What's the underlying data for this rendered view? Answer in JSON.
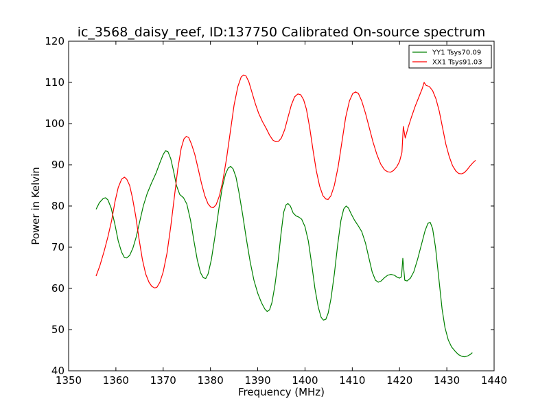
{
  "chart_data": {
    "type": "line",
    "title": "ic_3568_daisy_reef, ID:137750 Calibrated On-source spectrum",
    "xlabel": "Frequency (MHz)",
    "ylabel": "Power in Kelvin",
    "xlim": [
      1350,
      1440
    ],
    "ylim": [
      40,
      120
    ],
    "x_ticks": [
      1350,
      1360,
      1370,
      1380,
      1390,
      1400,
      1410,
      1420,
      1430,
      1440
    ],
    "y_ticks": [
      40,
      50,
      60,
      70,
      80,
      90,
      100,
      110,
      120
    ],
    "grid": false,
    "legend_position": "top-right",
    "series": [
      {
        "name": "YY1 Tsys70.09",
        "color": "#008000",
        "points": [
          [
            1355.8,
            79.2
          ],
          [
            1356.5,
            80.8
          ],
          [
            1357.3,
            81.8
          ],
          [
            1357.8,
            82.0
          ],
          [
            1358.3,
            81.5
          ],
          [
            1359.0,
            79.5
          ],
          [
            1359.8,
            75.5
          ],
          [
            1360.5,
            71.5
          ],
          [
            1361.2,
            68.8
          ],
          [
            1361.8,
            67.5
          ],
          [
            1362.3,
            67.4
          ],
          [
            1362.9,
            68.0
          ],
          [
            1363.6,
            69.8
          ],
          [
            1364.3,
            72.5
          ],
          [
            1365.0,
            76.0
          ],
          [
            1365.8,
            80.0
          ],
          [
            1366.6,
            83.0
          ],
          [
            1367.5,
            85.5
          ],
          [
            1368.5,
            88.0
          ],
          [
            1369.3,
            90.5
          ],
          [
            1370.0,
            92.5
          ],
          [
            1370.5,
            93.4
          ],
          [
            1371.0,
            93.2
          ],
          [
            1371.6,
            91.5
          ],
          [
            1372.2,
            88.5
          ],
          [
            1372.8,
            85.0
          ],
          [
            1373.5,
            82.8
          ],
          [
            1374.3,
            82.0
          ],
          [
            1375.0,
            80.5
          ],
          [
            1375.8,
            76.5
          ],
          [
            1376.5,
            71.5
          ],
          [
            1377.2,
            67.0
          ],
          [
            1377.9,
            63.8
          ],
          [
            1378.5,
            62.6
          ],
          [
            1379.0,
            62.4
          ],
          [
            1379.5,
            63.5
          ],
          [
            1380.2,
            67.0
          ],
          [
            1381.0,
            73.0
          ],
          [
            1381.8,
            79.5
          ],
          [
            1382.5,
            84.5
          ],
          [
            1383.2,
            87.8
          ],
          [
            1383.8,
            89.3
          ],
          [
            1384.3,
            89.6
          ],
          [
            1384.8,
            89.0
          ],
          [
            1385.4,
            87.0
          ],
          [
            1386.0,
            83.5
          ],
          [
            1386.8,
            78.0
          ],
          [
            1387.6,
            72.0
          ],
          [
            1388.4,
            66.5
          ],
          [
            1389.2,
            62.0
          ],
          [
            1390.0,
            58.8
          ],
          [
            1390.8,
            56.5
          ],
          [
            1391.5,
            55.0
          ],
          [
            1392.0,
            54.4
          ],
          [
            1392.5,
            54.8
          ],
          [
            1393.0,
            56.5
          ],
          [
            1393.6,
            60.5
          ],
          [
            1394.3,
            66.5
          ],
          [
            1394.9,
            73.0
          ],
          [
            1395.5,
            78.5
          ],
          [
            1396.0,
            80.3
          ],
          [
            1396.4,
            80.6
          ],
          [
            1396.9,
            80.0
          ],
          [
            1397.5,
            78.3
          ],
          [
            1398.1,
            77.6
          ],
          [
            1398.7,
            77.3
          ],
          [
            1399.3,
            76.8
          ],
          [
            1400.0,
            75.0
          ],
          [
            1400.7,
            71.5
          ],
          [
            1401.4,
            66.0
          ],
          [
            1402.1,
            60.0
          ],
          [
            1402.8,
            55.5
          ],
          [
            1403.4,
            53.0
          ],
          [
            1403.9,
            52.3
          ],
          [
            1404.4,
            52.5
          ],
          [
            1404.9,
            54.0
          ],
          [
            1405.5,
            57.5
          ],
          [
            1406.2,
            63.5
          ],
          [
            1406.9,
            70.5
          ],
          [
            1407.6,
            76.5
          ],
          [
            1408.2,
            79.3
          ],
          [
            1408.7,
            80.0
          ],
          [
            1409.2,
            79.5
          ],
          [
            1409.8,
            78.0
          ],
          [
            1410.5,
            76.5
          ],
          [
            1411.2,
            75.3
          ],
          [
            1412.0,
            73.8
          ],
          [
            1412.8,
            71.0
          ],
          [
            1413.5,
            67.5
          ],
          [
            1414.2,
            64.0
          ],
          [
            1414.9,
            62.0
          ],
          [
            1415.5,
            61.5
          ],
          [
            1416.1,
            61.8
          ],
          [
            1416.8,
            62.6
          ],
          [
            1417.5,
            63.2
          ],
          [
            1418.2,
            63.4
          ],
          [
            1418.9,
            63.2
          ],
          [
            1419.5,
            62.7
          ],
          [
            1420.0,
            62.5
          ],
          [
            1420.4,
            62.8
          ],
          [
            1420.7,
            67.3
          ],
          [
            1421.1,
            62.0
          ],
          [
            1421.6,
            61.8
          ],
          [
            1422.3,
            62.5
          ],
          [
            1423.0,
            64.0
          ],
          [
            1423.8,
            67.0
          ],
          [
            1424.6,
            70.5
          ],
          [
            1425.4,
            74.0
          ],
          [
            1426.0,
            75.8
          ],
          [
            1426.5,
            76.0
          ],
          [
            1427.0,
            74.5
          ],
          [
            1427.6,
            70.0
          ],
          [
            1428.3,
            62.5
          ],
          [
            1429.0,
            55.0
          ],
          [
            1429.6,
            50.5
          ],
          [
            1430.3,
            47.5
          ],
          [
            1431.0,
            45.8
          ],
          [
            1431.8,
            44.7
          ],
          [
            1432.5,
            43.9
          ],
          [
            1433.2,
            43.5
          ],
          [
            1433.8,
            43.4
          ],
          [
            1434.4,
            43.6
          ],
          [
            1435.0,
            44.0
          ],
          [
            1435.4,
            44.4
          ]
        ]
      },
      {
        "name": "XX1 Tsys91.03",
        "color": "#ff0000",
        "points": [
          [
            1355.8,
            63.0
          ],
          [
            1356.6,
            65.5
          ],
          [
            1357.5,
            69.0
          ],
          [
            1358.3,
            72.5
          ],
          [
            1359.1,
            76.5
          ],
          [
            1359.8,
            81.0
          ],
          [
            1360.5,
            84.5
          ],
          [
            1361.2,
            86.5
          ],
          [
            1361.8,
            87.0
          ],
          [
            1362.3,
            86.5
          ],
          [
            1362.9,
            85.0
          ],
          [
            1363.5,
            82.0
          ],
          [
            1364.2,
            77.5
          ],
          [
            1364.9,
            72.0
          ],
          [
            1365.6,
            67.0
          ],
          [
            1366.3,
            63.5
          ],
          [
            1367.0,
            61.5
          ],
          [
            1367.6,
            60.5
          ],
          [
            1368.2,
            60.1
          ],
          [
            1368.7,
            60.3
          ],
          [
            1369.3,
            61.5
          ],
          [
            1370.0,
            64.0
          ],
          [
            1370.8,
            68.5
          ],
          [
            1371.6,
            75.0
          ],
          [
            1372.4,
            82.5
          ],
          [
            1373.1,
            89.0
          ],
          [
            1373.8,
            94.0
          ],
          [
            1374.4,
            96.3
          ],
          [
            1374.9,
            96.9
          ],
          [
            1375.4,
            96.6
          ],
          [
            1376.0,
            95.0
          ],
          [
            1376.7,
            92.5
          ],
          [
            1377.4,
            89.0
          ],
          [
            1378.1,
            85.5
          ],
          [
            1378.8,
            82.5
          ],
          [
            1379.5,
            80.5
          ],
          [
            1380.1,
            79.7
          ],
          [
            1380.6,
            79.6
          ],
          [
            1381.2,
            80.3
          ],
          [
            1381.9,
            82.5
          ],
          [
            1382.6,
            86.0
          ],
          [
            1383.4,
            91.5
          ],
          [
            1384.2,
            98.0
          ],
          [
            1385.0,
            104.5
          ],
          [
            1385.8,
            109.0
          ],
          [
            1386.5,
            111.3
          ],
          [
            1387.0,
            111.8
          ],
          [
            1387.5,
            111.6
          ],
          [
            1388.1,
            110.2
          ],
          [
            1388.8,
            107.5
          ],
          [
            1389.5,
            104.8
          ],
          [
            1390.2,
            102.5
          ],
          [
            1391.0,
            100.5
          ],
          [
            1391.8,
            98.8
          ],
          [
            1392.5,
            97.2
          ],
          [
            1393.2,
            96.0
          ],
          [
            1393.8,
            95.6
          ],
          [
            1394.4,
            95.7
          ],
          [
            1395.0,
            96.5
          ],
          [
            1395.7,
            98.5
          ],
          [
            1396.4,
            101.5
          ],
          [
            1397.1,
            104.5
          ],
          [
            1397.8,
            106.5
          ],
          [
            1398.5,
            107.2
          ],
          [
            1399.1,
            107.0
          ],
          [
            1399.7,
            105.8
          ],
          [
            1400.3,
            103.5
          ],
          [
            1401.0,
            99.0
          ],
          [
            1401.7,
            93.5
          ],
          [
            1402.4,
            88.5
          ],
          [
            1403.1,
            84.8
          ],
          [
            1403.8,
            82.5
          ],
          [
            1404.4,
            81.7
          ],
          [
            1404.9,
            81.6
          ],
          [
            1405.5,
            82.5
          ],
          [
            1406.2,
            85.0
          ],
          [
            1407.0,
            89.5
          ],
          [
            1407.8,
            95.5
          ],
          [
            1408.6,
            101.5
          ],
          [
            1409.4,
            105.5
          ],
          [
            1410.1,
            107.3
          ],
          [
            1410.7,
            107.7
          ],
          [
            1411.3,
            107.3
          ],
          [
            1412.0,
            105.5
          ],
          [
            1412.8,
            102.5
          ],
          [
            1413.6,
            99.0
          ],
          [
            1414.4,
            95.5
          ],
          [
            1415.2,
            92.5
          ],
          [
            1416.0,
            90.2
          ],
          [
            1416.8,
            88.8
          ],
          [
            1417.5,
            88.3
          ],
          [
            1418.1,
            88.2
          ],
          [
            1418.7,
            88.6
          ],
          [
            1419.4,
            89.5
          ],
          [
            1420.0,
            90.8
          ],
          [
            1420.5,
            93.0
          ],
          [
            1420.8,
            99.3
          ],
          [
            1421.2,
            96.5
          ],
          [
            1421.8,
            99.0
          ],
          [
            1422.5,
            101.5
          ],
          [
            1423.3,
            104.2
          ],
          [
            1424.1,
            106.5
          ],
          [
            1424.8,
            108.5
          ],
          [
            1425.2,
            110.0
          ],
          [
            1425.6,
            109.3
          ],
          [
            1426.3,
            109.0
          ],
          [
            1427.0,
            108.0
          ],
          [
            1427.7,
            106.0
          ],
          [
            1428.4,
            103.0
          ],
          [
            1429.1,
            99.0
          ],
          [
            1429.8,
            95.0
          ],
          [
            1430.5,
            92.0
          ],
          [
            1431.2,
            89.8
          ],
          [
            1431.9,
            88.5
          ],
          [
            1432.5,
            87.9
          ],
          [
            1433.1,
            87.8
          ],
          [
            1433.7,
            88.1
          ],
          [
            1434.3,
            88.8
          ],
          [
            1434.9,
            89.7
          ],
          [
            1435.6,
            90.6
          ],
          [
            1436.1,
            91.1
          ]
        ]
      }
    ]
  }
}
